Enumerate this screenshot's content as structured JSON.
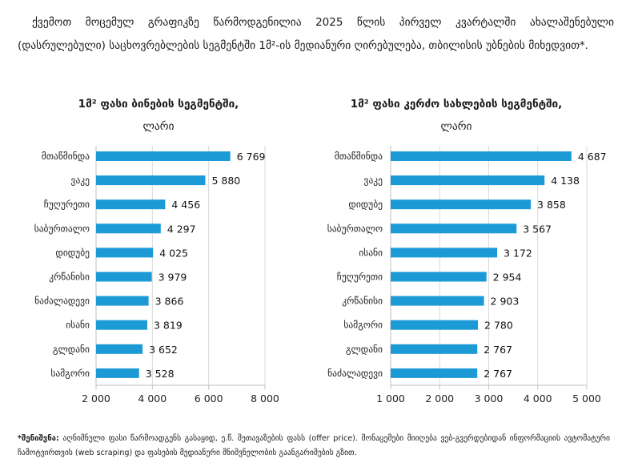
{
  "intro": "ქვემოთ მოცემულ გრაფიკზე წარმოდგენილია 2025 წლის პირველ კვარტალში ახალაშენებული (დასრულებული) საცხოვრებლების სეგმენტში 1მ²-ის მედიანური ღირებულება, თბილისის უბნების მიხედვით*.",
  "note": {
    "label": "*შენიშვნა:",
    "text": " აღნიშნული ფასი წარმოადგენს გასაყიდ, ე.წ. შეთავაზების ფასს (offer price). მონაცემები მიიღება ვებ-გვერდებიდან ინფორმაციის ავტომატური ჩამოტვირთვის (web scraping) და ფასების მედიანური მნიშვნელობის გაანგარიშების გზით."
  },
  "colors": {
    "bar": "#1b9ad6",
    "grid": "#d9d9d9"
  },
  "chart_data": [
    {
      "type": "bar",
      "orientation": "horizontal",
      "title": "1მ² ფასი ბინების სეგმენტში,",
      "subtitle": "ლარი",
      "categories": [
        "მთაწმინდა",
        "ვაკე",
        "ჩუღურეთი",
        "საბურთალო",
        "დიდუბე",
        "კრწანისი",
        "ნაძალადევი",
        "ისანი",
        "გლდანი",
        "სამგორი"
      ],
      "values": [
        6769,
        5880,
        4456,
        4297,
        4025,
        3979,
        3866,
        3819,
        3652,
        3528
      ],
      "value_labels": [
        "6 769",
        "5 880",
        "4 456",
        "4 297",
        "4 025",
        "3 979",
        "3 866",
        "3 819",
        "3 652",
        "3 528"
      ],
      "xlim": [
        2000,
        8000
      ],
      "xticks": [
        2000,
        4000,
        6000,
        8000
      ],
      "xtick_labels": [
        "2 000",
        "4 000",
        "6 000",
        "8 000"
      ],
      "grid": true
    },
    {
      "type": "bar",
      "orientation": "horizontal",
      "title": "1მ² ფასი კერძო სახლების სეგმენტში,",
      "subtitle": "ლარი",
      "categories": [
        "მთაწმინდა",
        "ვაკე",
        "დიდუბე",
        "საბურთალო",
        "ისანი",
        "ჩუღურეთი",
        "კრწანისი",
        "სამგორი",
        "გლდანი",
        "ნაძალადევი"
      ],
      "values": [
        4687,
        4138,
        3858,
        3567,
        3172,
        2954,
        2903,
        2780,
        2767,
        2767
      ],
      "value_labels": [
        "4 687",
        "4 138",
        "3 858",
        "3 567",
        "3 172",
        "2 954",
        "2 903",
        "2 780",
        "2 767",
        "2 767"
      ],
      "xlim": [
        1000,
        5000
      ],
      "xticks": [
        1000,
        2000,
        3000,
        4000,
        5000
      ],
      "xtick_labels": [
        "1 000",
        "2 000",
        "3 000",
        "4 000",
        "5 000"
      ],
      "grid": true
    }
  ]
}
